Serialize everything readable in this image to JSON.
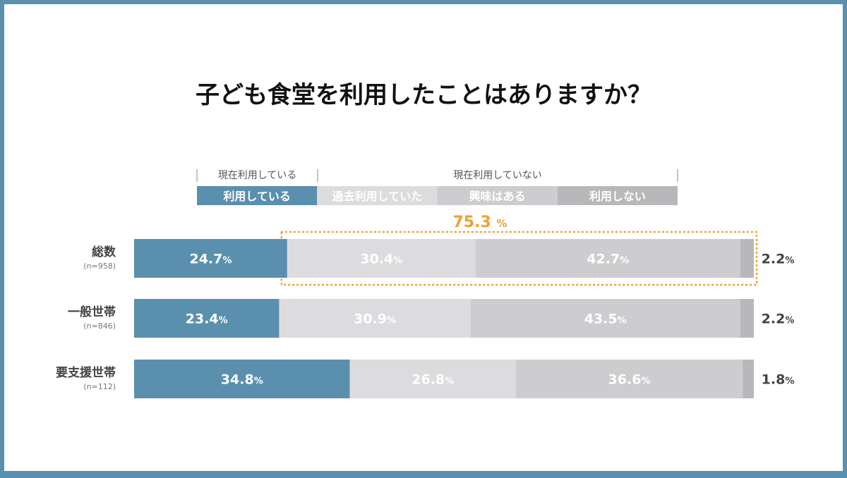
{
  "title": "子ども食堂を利用したことはありますか？",
  "groups": [
    {
      "label": "現在利用している"
    },
    {
      "label": "現在利用していない"
    }
  ],
  "colors": [
    "#5b8fae",
    "#dcdcdf",
    "#cdcdd0",
    "#b8b8bb"
  ],
  "highlight": {
    "value": "75.3",
    "unit": "%",
    "color": "#f0a030"
  },
  "chart_data": {
    "type": "bar",
    "orientation": "horizontal",
    "stacked": true,
    "unit": "%",
    "categories": [
      {
        "label": "総数",
        "n": "(n=958)"
      },
      {
        "label": "一般世帯",
        "n": "(n=846)"
      },
      {
        "label": "要支援世帯",
        "n": "(n=112)"
      }
    ],
    "series": [
      {
        "name": "利用している",
        "values": [
          24.7,
          23.4,
          34.8
        ]
      },
      {
        "name": "過去利用していた",
        "values": [
          30.4,
          30.9,
          26.8
        ]
      },
      {
        "name": "興味はある",
        "values": [
          42.7,
          43.5,
          36.6
        ]
      },
      {
        "name": "利用しない",
        "values": [
          2.2,
          2.2,
          1.8
        ]
      }
    ],
    "xlim": [
      0,
      100
    ]
  }
}
